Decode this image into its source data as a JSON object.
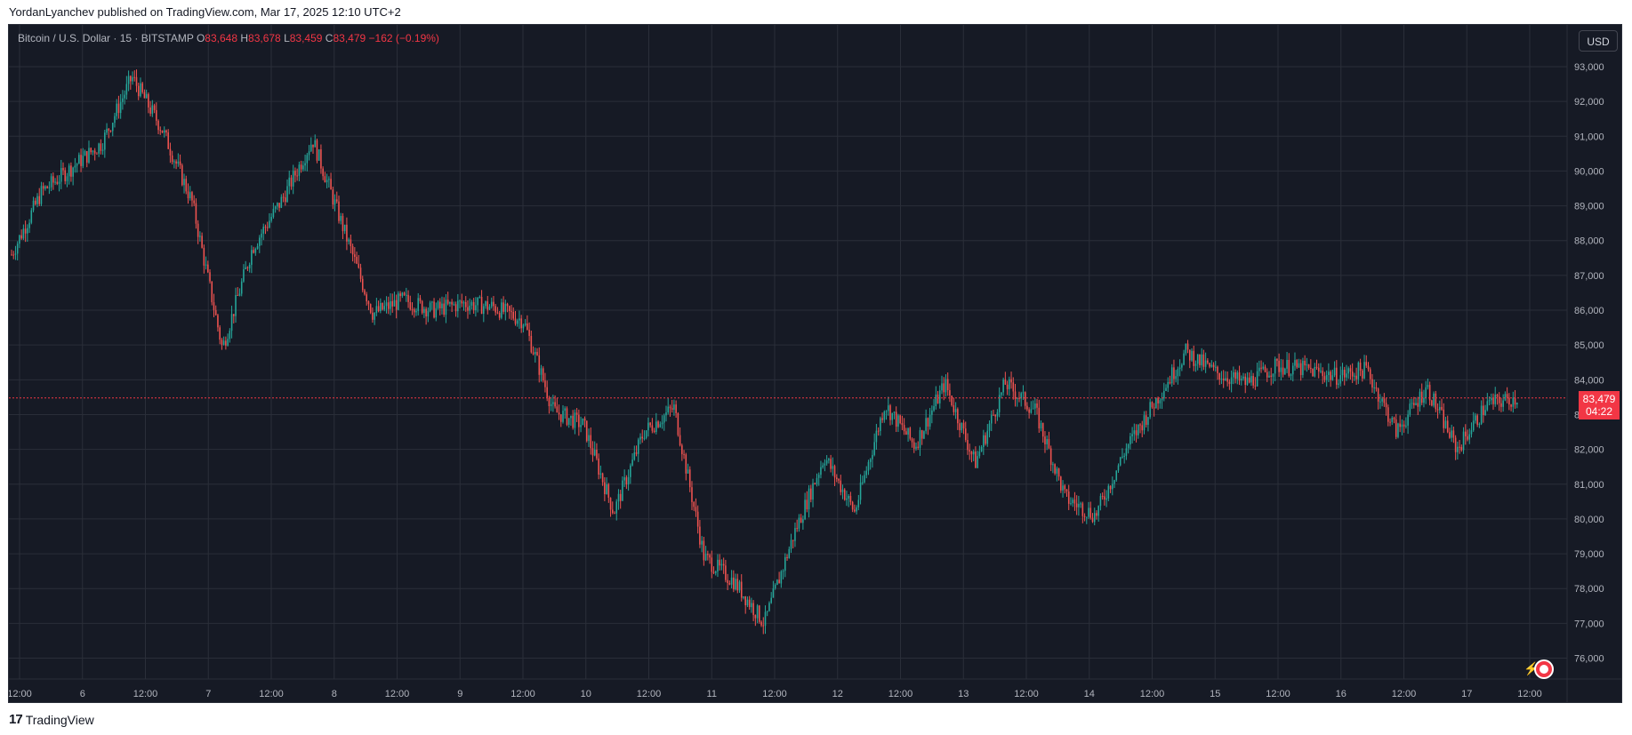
{
  "header": {
    "published": "YordanLyanchev published on TradingView.com, Mar 17, 2025 12:10 UTC+2"
  },
  "legend": {
    "symbol": "Bitcoin / U.S. Dollar · 15 · BITSTAMP",
    "o_label": "O",
    "o_value": "83,648",
    "h_label": "H",
    "h_value": "83,678",
    "l_label": "L",
    "l_value": "83,459",
    "c_label": "C",
    "c_value": "83,479",
    "change": "−162 (−0.19%)"
  },
  "currency_button": "USD",
  "price_badge": {
    "price": "83,479",
    "countdown": "04:22"
  },
  "footer": {
    "brand": "TradingView",
    "logo": "17"
  },
  "colors": {
    "up": "#26a69a",
    "down": "#ef5350",
    "background": "#161a25",
    "grid": "#2a2e39",
    "last_price_line": "#f23645"
  },
  "icons": [
    "tradingview-logo-icon",
    "us-flag-icon",
    "lightning-icon"
  ],
  "chart_data": {
    "type": "candlestick",
    "title": "Bitcoin / U.S. Dollar · 15 · BITSTAMP",
    "ylim": [
      75400,
      94200
    ],
    "y_ticks": [
      "93,000",
      "92,000",
      "91,000",
      "90,000",
      "89,000",
      "88,000",
      "87,000",
      "86,000",
      "85,000",
      "84,000",
      "83,000",
      "82,000",
      "81,000",
      "80,000",
      "79,000",
      "78,000",
      "77,000",
      "76,000"
    ],
    "x_ticks": [
      "12:00",
      "6",
      "12:00",
      "7",
      "12:00",
      "8",
      "12:00",
      "9",
      "12:00",
      "10",
      "12:00",
      "11",
      "12:00",
      "12",
      "12:00",
      "13",
      "12:00",
      "14",
      "12:00",
      "15",
      "12:00",
      "16",
      "12:00",
      "17",
      "12:00"
    ],
    "last_price": 83479,
    "close_path": [
      [
        "Mar 5 12:00",
        87600
      ],
      [
        "Mar 5 18:00",
        89400
      ],
      [
        "Mar 6 00:00",
        90100
      ],
      [
        "Mar 6 06:00",
        90800
      ],
      [
        "Mar 6 12:00",
        92700
      ],
      [
        "Mar 6 18:00",
        91200
      ],
      [
        "Mar 7 00:00",
        89100
      ],
      [
        "Mar 7 03:00",
        84900
      ],
      [
        "Mar 7 06:00",
        87800
      ],
      [
        "Mar 7 12:00",
        89200
      ],
      [
        "Mar 7 18:00",
        90900
      ],
      [
        "Mar 8 00:00",
        88400
      ],
      [
        "Mar 8 06:00",
        85900
      ],
      [
        "Mar 8 12:00",
        86300
      ],
      [
        "Mar 8 18:00",
        86000
      ],
      [
        "Mar 9 00:00",
        86200
      ],
      [
        "Mar 9 06:00",
        86100
      ],
      [
        "Mar 9 12:00",
        85700
      ],
      [
        "Mar 9 18:00",
        83100
      ],
      [
        "Mar 10 00:00",
        82700
      ],
      [
        "Mar 10 03:00",
        80200
      ],
      [
        "Mar 10 12:00",
        82500
      ],
      [
        "Mar 10 18:00",
        83200
      ],
      [
        "Mar 11 00:00",
        78900
      ],
      [
        "Mar 11 06:00",
        78200
      ],
      [
        "Mar 11 12:00",
        77000
      ],
      [
        "Mar 11 18:00",
        79600
      ],
      [
        "Mar 12 00:00",
        81800
      ],
      [
        "Mar 12 06:00",
        80200
      ],
      [
        "Mar 12 12:00",
        83300
      ],
      [
        "Mar 12 18:00",
        82100
      ],
      [
        "Mar 13 00:00",
        83900
      ],
      [
        "Mar 13 06:00",
        81600
      ],
      [
        "Mar 13 12:00",
        83900
      ],
      [
        "Mar 13 18:00",
        83100
      ],
      [
        "Mar 14 00:00",
        80600
      ],
      [
        "Mar 14 06:00",
        80100
      ],
      [
        "Mar 14 12:00",
        82000
      ],
      [
        "Mar 14 18:00",
        83400
      ],
      [
        "Mar 15 00:00",
        84800
      ],
      [
        "Mar 15 06:00",
        84200
      ],
      [
        "Mar 15 12:00",
        83900
      ],
      [
        "Mar 15 18:00",
        84400
      ],
      [
        "Mar 16 00:00",
        84300
      ],
      [
        "Mar 16 06:00",
        84100
      ],
      [
        "Mar 16 12:00",
        84300
      ],
      [
        "Mar 16 18:00",
        82500
      ],
      [
        "Mar 17 00:00",
        83800
      ],
      [
        "Mar 17 03:00",
        82000
      ],
      [
        "Mar 17 06:00",
        83300
      ],
      [
        "Mar 17 12:00",
        83479
      ]
    ]
  }
}
